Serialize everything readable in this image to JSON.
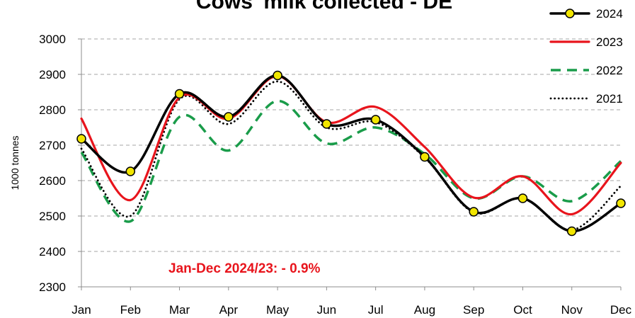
{
  "chart_data": {
    "type": "line",
    "title": "Cows' milk collected - DE",
    "ylabel": "1000 tonnes",
    "xlabel": "",
    "categories": [
      "Jan",
      "Feb",
      "Mar",
      "Apr",
      "May",
      "Jun",
      "Jul",
      "Aug",
      "Sep",
      "Oct",
      "Nov",
      "Dec"
    ],
    "ylim": [
      2300,
      3000
    ],
    "yticks": [
      2300,
      2400,
      2500,
      2600,
      2700,
      2800,
      2900,
      3000
    ],
    "grid": "horizontal dashed",
    "legend_position": "top-right",
    "annotation": "Jan-Dec 2024/23: - 0.9%",
    "annotation_color": "#e8141c",
    "series": [
      {
        "name": "2024",
        "color": "#000000",
        "style": "solid-markers",
        "values": [
          2718,
          2626,
          2845,
          2780,
          2897,
          2760,
          2772,
          2667,
          2512,
          2550,
          2457,
          2536
        ]
      },
      {
        "name": "2023",
        "color": "#e8141c",
        "style": "solid",
        "values": [
          2775,
          2545,
          2835,
          2775,
          2895,
          2765,
          2808,
          2695,
          2552,
          2612,
          2505,
          2650
        ]
      },
      {
        "name": "2022",
        "color": "#1a9c4a",
        "style": "dashed",
        "values": [
          2680,
          2485,
          2780,
          2685,
          2825,
          2705,
          2750,
          2675,
          2550,
          2612,
          2542,
          2655
        ]
      },
      {
        "name": "2021",
        "color": "#000000",
        "style": "dotted",
        "values": [
          2690,
          2500,
          2830,
          2760,
          2880,
          2750,
          2765,
          2665,
          2510,
          2550,
          2460,
          2585
        ]
      }
    ]
  }
}
